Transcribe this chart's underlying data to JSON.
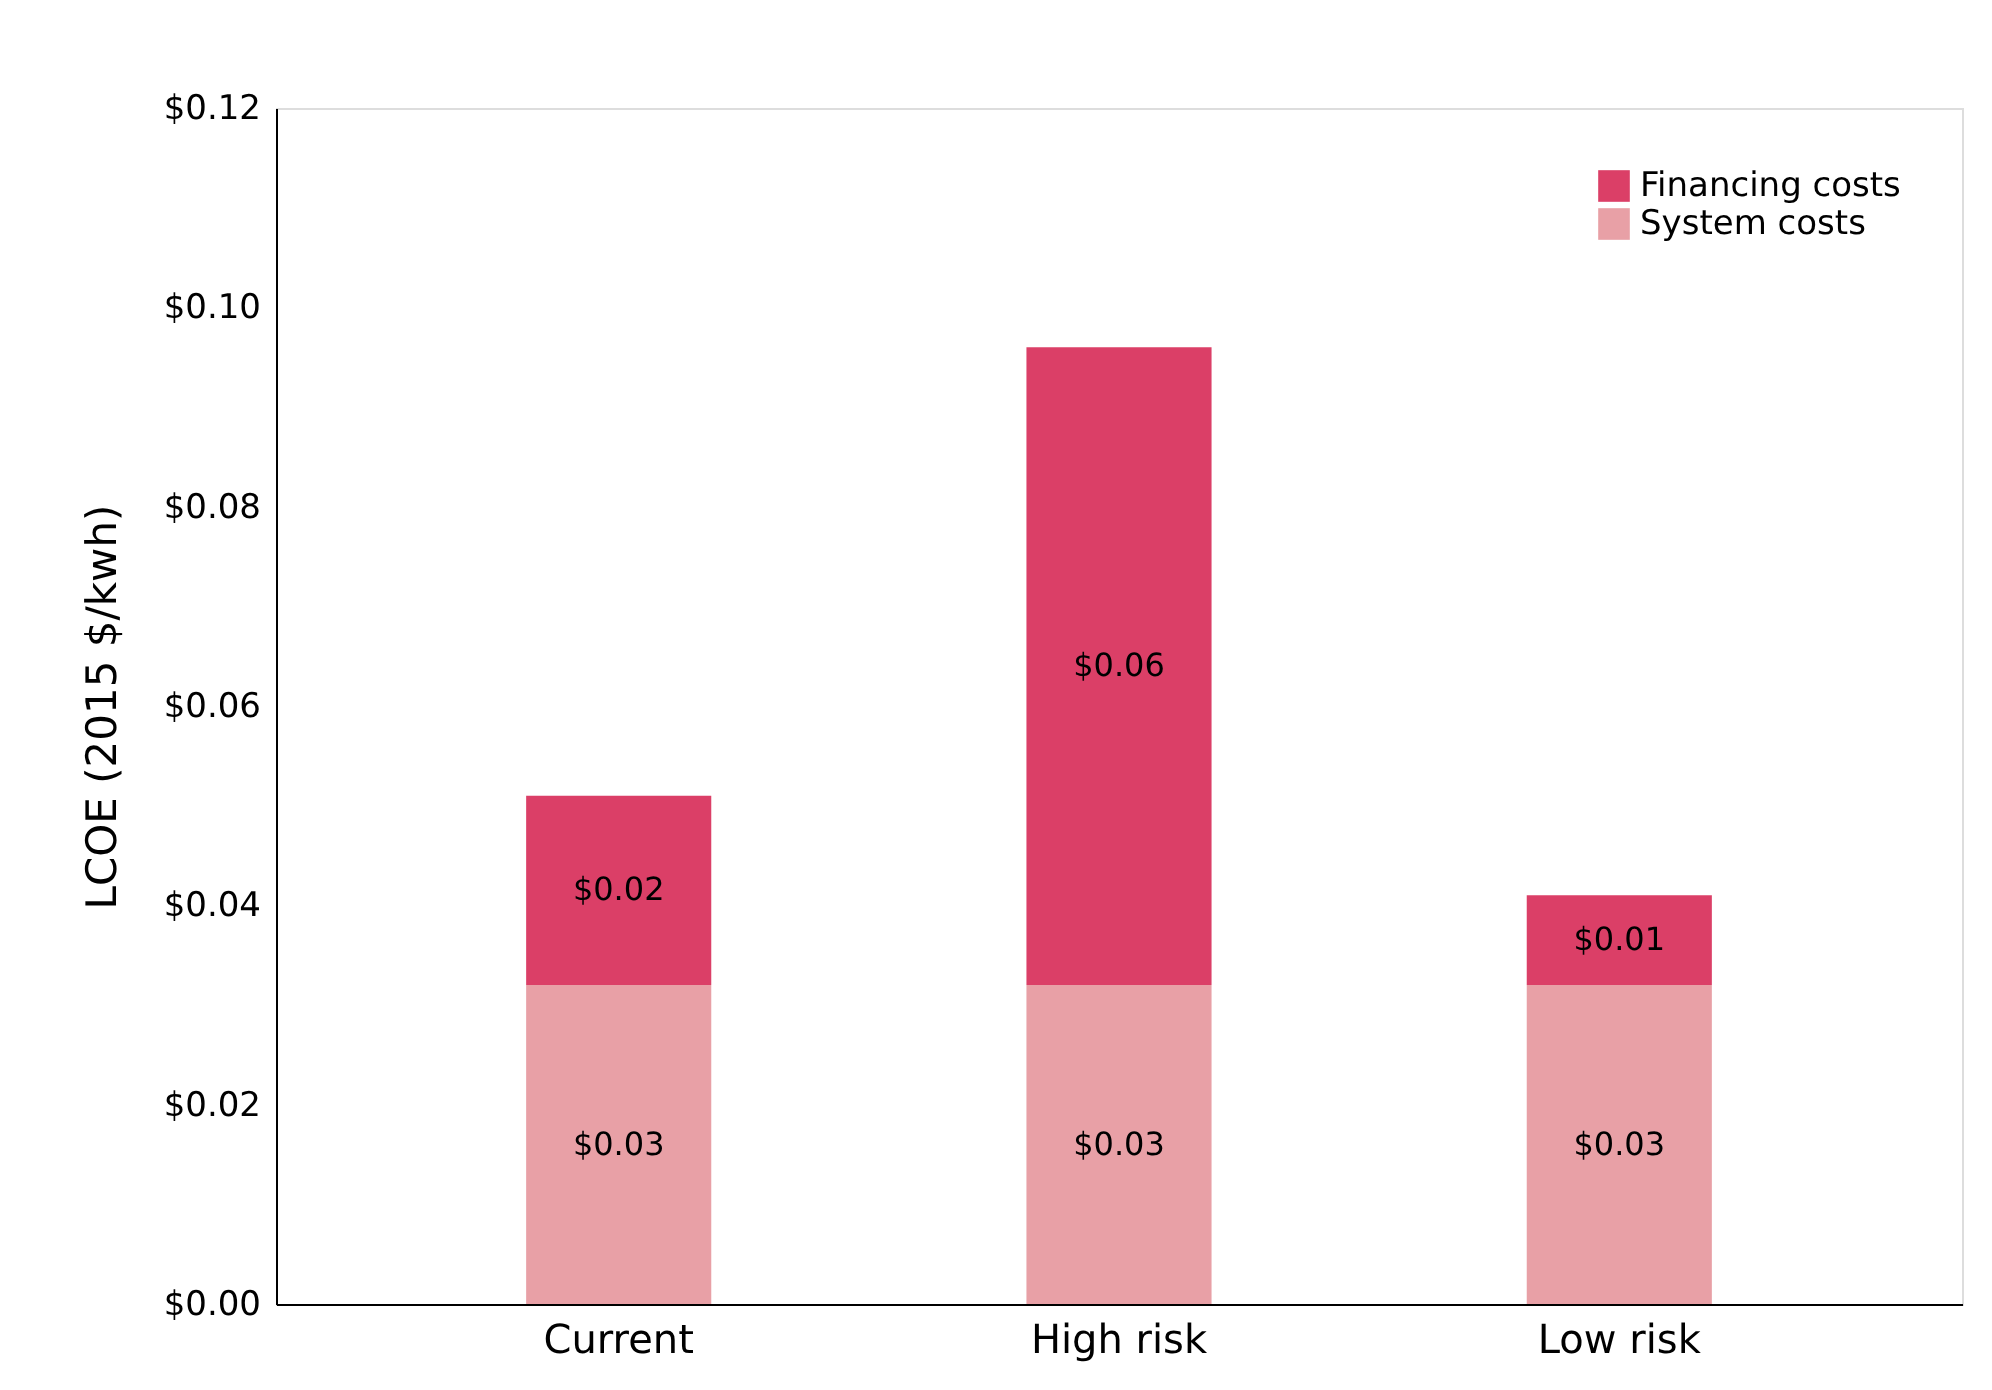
{
  "chart_data": {
    "type": "bar",
    "stacked": true,
    "ylabel": "LCOE (2015 $/kwh)",
    "categories": [
      "Current",
      "High risk",
      "Low risk"
    ],
    "series": [
      {
        "name": "System costs",
        "color": "#e8a0a6",
        "values": [
          0.032,
          0.032,
          0.032
        ],
        "value_labels": [
          "$0.03",
          "$0.03",
          "$0.03"
        ]
      },
      {
        "name": "Financing costs",
        "color": "#db3f67",
        "values": [
          0.019,
          0.064,
          0.009
        ],
        "value_labels": [
          "$0.02",
          "$0.06",
          "$0.01"
        ]
      }
    ],
    "ylim": [
      0,
      0.12
    ],
    "yticks": [
      {
        "value": 0,
        "label": "$0.00"
      },
      {
        "value": 0.02,
        "label": "$0.02"
      },
      {
        "value": 0.04,
        "label": "$0.04"
      },
      {
        "value": 0.06,
        "label": "$0.06"
      },
      {
        "value": 0.08,
        "label": "$0.08"
      },
      {
        "value": 0.1,
        "label": "$0.10"
      },
      {
        "value": 0.12,
        "label": "$0.12"
      }
    ],
    "grid": false,
    "legend": "top right"
  }
}
